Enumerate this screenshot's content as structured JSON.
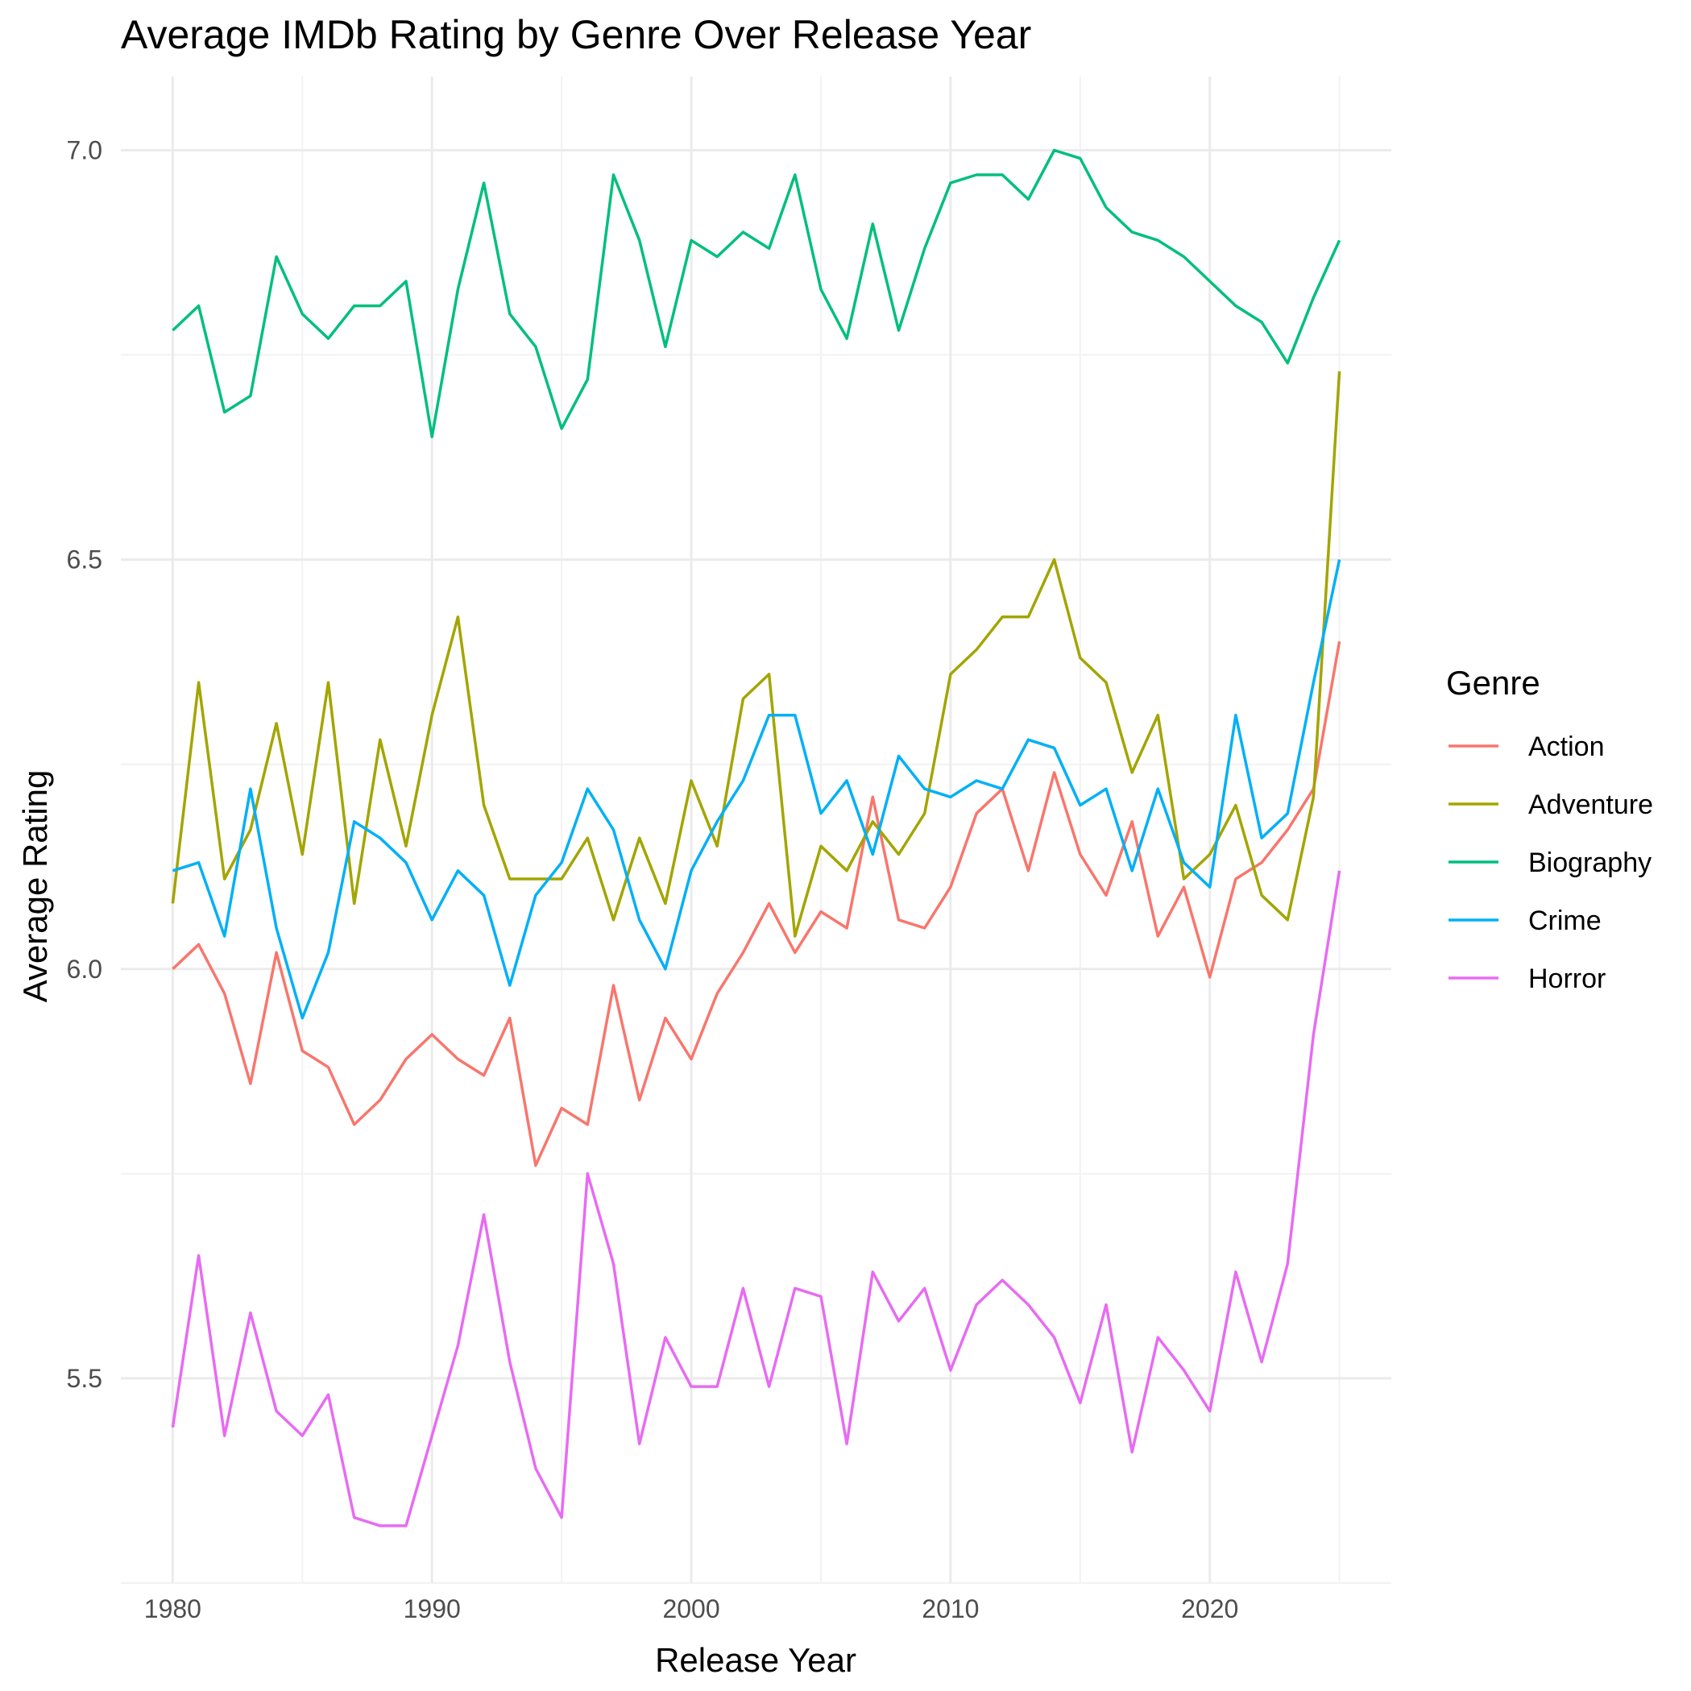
{
  "chart_data": {
    "type": "line",
    "title": "Average IMDb Rating by Genre Over Release Year",
    "xlabel": "Release Year",
    "ylabel": "Average Rating",
    "xlim": [
      1978,
      2027
    ],
    "ylim": [
      5.25,
      7.09
    ],
    "x_ticks": [
      1980,
      1990,
      2000,
      2010,
      2020
    ],
    "y_ticks": [
      5.5,
      6.0,
      6.5,
      7.0
    ],
    "y_tick_labels": [
      "5.5",
      "6.0",
      "6.5",
      "7.0"
    ],
    "x_minor_ticks": [
      1985,
      1995,
      2005,
      2015,
      2025
    ],
    "y_minor_ticks": [
      5.25,
      5.75,
      6.25,
      6.75
    ],
    "grid": true,
    "legend": {
      "title": "Genre",
      "position": "right"
    },
    "x": [
      1980,
      1981,
      1982,
      1983,
      1984,
      1985,
      1986,
      1987,
      1988,
      1989,
      1990,
      1991,
      1992,
      1993,
      1994,
      1995,
      1996,
      1997,
      1998,
      1999,
      2000,
      2001,
      2002,
      2003,
      2004,
      2005,
      2006,
      2007,
      2008,
      2009,
      2010,
      2011,
      2012,
      2013,
      2014,
      2015,
      2016,
      2017,
      2018,
      2019,
      2020,
      2021,
      2022,
      2023,
      2024,
      2025
    ],
    "series": [
      {
        "name": "Action",
        "color": "#F8766D",
        "values": [
          6.0,
          6.03,
          5.97,
          5.86,
          6.02,
          5.9,
          5.88,
          5.81,
          5.84,
          5.89,
          5.92,
          5.89,
          5.87,
          5.94,
          5.76,
          5.83,
          5.81,
          5.98,
          5.84,
          5.94,
          5.89,
          5.97,
          6.02,
          6.08,
          6.02,
          6.07,
          6.05,
          6.21,
          6.06,
          6.05,
          6.1,
          6.19,
          6.22,
          6.12,
          6.24,
          6.14,
          6.09,
          6.18,
          6.04,
          6.1,
          5.99,
          6.11,
          6.13,
          6.17,
          6.22,
          6.4
        ]
      },
      {
        "name": "Adventure",
        "color": "#A3A500",
        "values": [
          6.08,
          6.35,
          6.11,
          6.17,
          6.3,
          6.14,
          6.35,
          6.08,
          6.28,
          6.15,
          6.31,
          6.43,
          6.2,
          6.11,
          6.11,
          6.11,
          6.16,
          6.06,
          6.16,
          6.08,
          6.23,
          6.15,
          6.33,
          6.36,
          6.04,
          6.15,
          6.12,
          6.18,
          6.14,
          6.19,
          6.36,
          6.39,
          6.43,
          6.43,
          6.5,
          6.38,
          6.35,
          6.24,
          6.31,
          6.11,
          6.14,
          6.2,
          6.09,
          6.06,
          6.21,
          6.73
        ]
      },
      {
        "name": "Biography",
        "color": "#00BF7D",
        "values": [
          6.78,
          6.81,
          6.68,
          6.7,
          6.87,
          6.8,
          6.77,
          6.81,
          6.81,
          6.84,
          6.65,
          6.83,
          6.96,
          6.8,
          6.76,
          6.66,
          6.72,
          6.97,
          6.89,
          6.76,
          6.89,
          6.87,
          6.9,
          6.88,
          6.97,
          6.83,
          6.77,
          6.91,
          6.78,
          6.88,
          6.96,
          6.97,
          6.97,
          6.94,
          7.0,
          6.99,
          6.93,
          6.9,
          6.89,
          6.87,
          6.84,
          6.81,
          6.79,
          6.74,
          6.82,
          6.89
        ]
      },
      {
        "name": "Crime",
        "color": "#00B0F6",
        "values": [
          6.12,
          6.13,
          6.04,
          6.22,
          6.05,
          5.94,
          6.02,
          6.18,
          6.16,
          6.13,
          6.06,
          6.12,
          6.09,
          5.98,
          6.09,
          6.13,
          6.22,
          6.17,
          6.06,
          6.0,
          6.12,
          6.18,
          6.23,
          6.31,
          6.31,
          6.19,
          6.23,
          6.14,
          6.26,
          6.22,
          6.21,
          6.23,
          6.22,
          6.28,
          6.27,
          6.2,
          6.22,
          6.12,
          6.22,
          6.13,
          6.1,
          6.31,
          6.16,
          6.19,
          6.35,
          6.5
        ]
      },
      {
        "name": "Horror",
        "color": "#E76BF3",
        "values": [
          5.44,
          5.65,
          5.43,
          5.58,
          5.46,
          5.43,
          5.48,
          5.33,
          5.32,
          5.32,
          5.43,
          5.54,
          5.7,
          5.52,
          5.39,
          5.33,
          5.75,
          5.64,
          5.42,
          5.55,
          5.49,
          5.49,
          5.61,
          5.49,
          5.61,
          5.6,
          5.42,
          5.63,
          5.57,
          5.61,
          5.51,
          5.59,
          5.62,
          5.59,
          5.55,
          5.47,
          5.59,
          5.41,
          5.55,
          5.51,
          5.46,
          5.63,
          5.52,
          5.64,
          5.92,
          6.12
        ]
      }
    ]
  }
}
